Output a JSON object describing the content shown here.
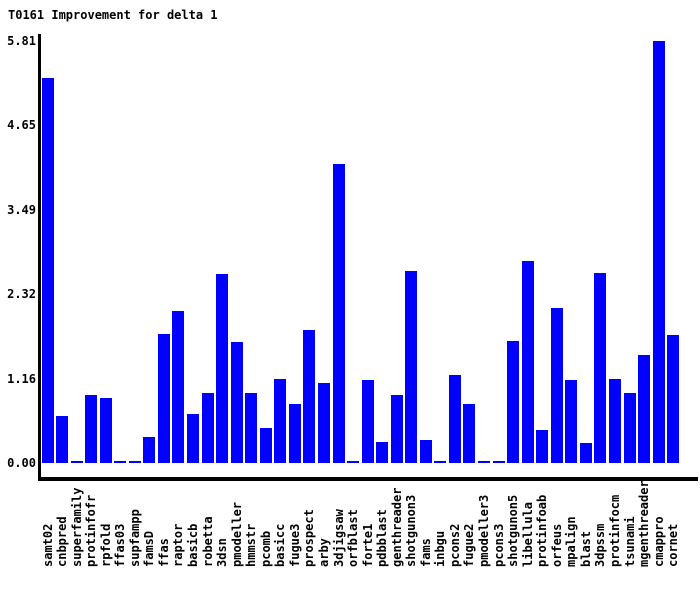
{
  "page": {
    "background": "#ffffff"
  },
  "chart_data": {
    "type": "bar",
    "title": "T0161 Improvement for delta 1",
    "xlabel": "",
    "ylabel": "",
    "ylim": [
      0,
      5.81
    ],
    "yticks": [
      0,
      1.16,
      2.32,
      3.49,
      4.65,
      5.81
    ],
    "ytick_labels": [
      "0.00",
      "1.16",
      "2.32",
      "3.49",
      "4.65",
      "5.81"
    ],
    "grid": false,
    "legend_position": "none",
    "bar_color": "#0000ff",
    "axis_color": "#000000",
    "text_color": "#000000",
    "categories": [
      "samt02",
      "cnbpred",
      "superfamily",
      "protinfofr",
      "rpfold",
      "ffas03",
      "supfampp",
      "famsD",
      "ffas",
      "raptor",
      "basicb",
      "robetta",
      "3dsn",
      "pmodeller",
      "hmmstr",
      "pcomb",
      "basicc",
      "fugue3",
      "prospect",
      "arby",
      "3djigsaw",
      "orfblast",
      "forte1",
      "pdbblast",
      "genthreader",
      "shotgunon3",
      "fams",
      "inbgu",
      "pcons2",
      "fugue2",
      "pmodeller3",
      "pcons3",
      "shotgunon5",
      "libellula",
      "protinfoab",
      "orfeus",
      "mpalign",
      "blast",
      "3dpssm",
      "protinfocm",
      "tsunami",
      "mgenthreader",
      "cmappro",
      "cornet"
    ],
    "values": [
      5.3,
      0.65,
      0.03,
      0.94,
      0.9,
      0.03,
      0.03,
      0.36,
      1.78,
      2.09,
      0.68,
      0.96,
      2.6,
      1.67,
      0.96,
      0.48,
      1.15,
      0.81,
      1.83,
      1.1,
      4.12,
      0.03,
      1.14,
      0.29,
      0.94,
      2.64,
      0.32,
      0.03,
      1.21,
      0.81,
      0.03,
      0.03,
      1.68,
      2.78,
      0.45,
      2.13,
      1.14,
      0.28,
      2.62,
      1.15,
      0.96,
      1.49,
      5.81,
      1.76
    ]
  }
}
